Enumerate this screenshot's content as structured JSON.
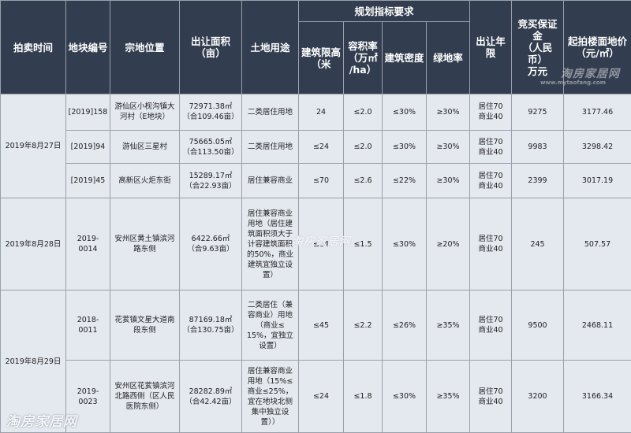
{
  "headers": {
    "auction_time": "拍卖时间",
    "parcel_no": "地块编号",
    "location": "宗地位置",
    "area": "出让面积\n（亩）",
    "land_use": "土地用途",
    "planning_group": "规划指标要求",
    "height_limit": "建筑限高\n（米",
    "plot_ratio": "容积率\n（万㎡\n/ha）",
    "density": "建筑密度",
    "green_ratio": "绿地率",
    "term": "出让年限",
    "deposit": "竞买保证金\n（人民币）\n万元",
    "start_price": "起拍楼面地价\n（元/㎡）"
  },
  "groups": [
    {
      "date": "2019年8月27日",
      "rows": [
        {
          "parcel": "[2019]158",
          "location": "游仙区小枧沟镇大\n河村（E地块）",
          "area": "72971.38㎡\n（合109.46亩）",
          "land_use": "二类居住用地",
          "height": "24",
          "plot_ratio": "≤2.0",
          "density": "≤30%",
          "green": "≥30%",
          "term": "居住70\n商业40",
          "deposit": "9275",
          "price": "3177.46"
        },
        {
          "parcel": "[2019]94",
          "location": "游仙区三星村",
          "area": "75665.05㎡\n（合113.50亩）",
          "land_use": "二类居住用地",
          "height": "≤24",
          "plot_ratio": "≤2.0",
          "density": "≤30%",
          "green": "≥30%",
          "term": "居住70\n商业40",
          "deposit": "9983",
          "price": "3298.42"
        },
        {
          "parcel": "[2019]45",
          "location": "高新区火炬东街",
          "area": "15289.17㎡\n（合22.93亩）",
          "land_use": "居住兼容商业",
          "height": "≤70",
          "plot_ratio": "≤2.6",
          "density": "≤22%",
          "green": "≥30%",
          "term": "居住70\n商业40",
          "deposit": "2399",
          "price": "3017.19"
        }
      ]
    },
    {
      "date": "2019年8月28日",
      "rows": [
        {
          "parcel": "2019-0014",
          "location": "安州区黄土镇滨河\n路东侧",
          "area": "6422.66㎡\n（合9.63亩）",
          "land_use": "居住兼容商业\n用地（居住建\n筑面积须大于\n计容建筑面积\n的50%，商业\n建筑宜独立设\n置）",
          "height": "≤24",
          "plot_ratio": "≤1.5",
          "density": "≤30%",
          "green": "≥20%",
          "term": "居住70\n商业40",
          "deposit": "245",
          "price": "507.57"
        }
      ]
    },
    {
      "date": "2019年8月29日",
      "rows": [
        {
          "parcel": "2018-0011",
          "location": "花荄镇文星大道南\n段东侧",
          "area": "87169.18㎡\n（合130.75亩）",
          "land_use": "二类居住（兼\n容商业）用地\n（商业≤\n15%，宜独立\n设置）",
          "height": "≤45",
          "plot_ratio": "≤2.2",
          "density": "≤26%",
          "green": "≥35%",
          "term": "居住70\n商业40",
          "deposit": "9500",
          "price": "2468.11"
        },
        {
          "parcel": "2019-0023",
          "location": "安州区花荄镇滨河\n北路西侧（区人民\n医院东侧）",
          "area": "28282.89㎡\n（合42.42亩）",
          "land_use": "居住兼容商业\n用地（15%≤\n商业≤25%，\n宜在地块北侧\n集中独立设\n置））",
          "height": "≤24",
          "plot_ratio": "≤1.8",
          "density": "≤30%",
          "green": "≥35%",
          "term": "居住70\n商业40",
          "deposit": "3200",
          "price": "3166.34"
        }
      ]
    }
  ],
  "watermarks": {
    "brand": "淘房家居网",
    "url": "www.mytaofang.com"
  }
}
